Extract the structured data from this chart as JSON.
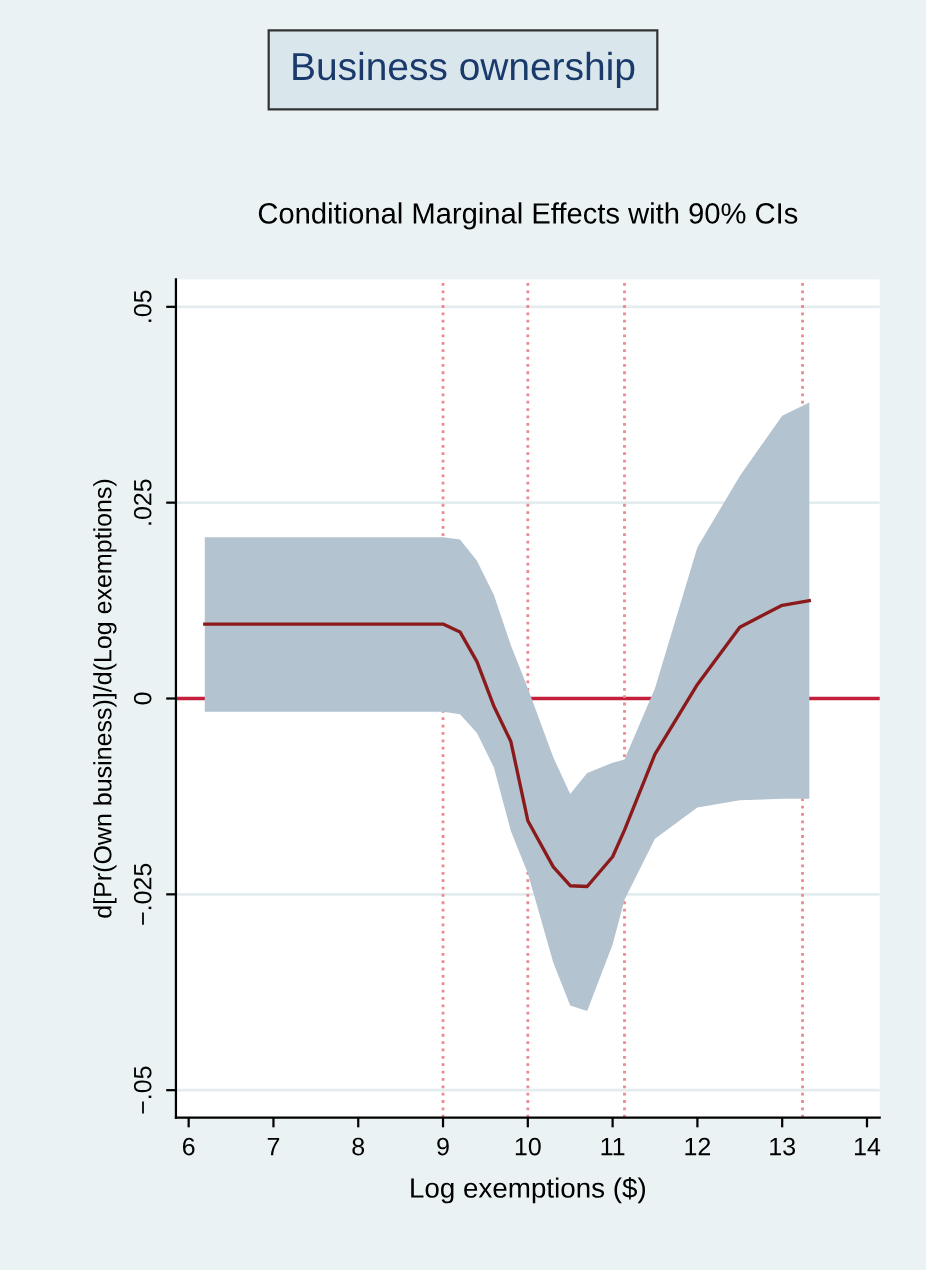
{
  "chart_data": {
    "type": "line",
    "title": "Business ownership",
    "subtitle": "Conditional Marginal Effects with 90% CIs",
    "xlabel": "Log exemptions ($)",
    "ylabel": "d[Pr(Own business)]/d(Log exemptions)",
    "x": [
      6.19,
      9.0,
      9.2,
      9.4,
      9.6,
      9.8,
      10.0,
      10.3,
      10.5,
      10.7,
      11.0,
      11.14,
      11.5,
      12.0,
      12.5,
      13.0,
      13.32
    ],
    "series": [
      {
        "color": "#8b1a1a",
        "values": [
          0.0095,
          0.0095,
          0.0085,
          0.0047,
          -0.001,
          -0.0055,
          -0.0156,
          -0.0215,
          -0.0239,
          -0.024,
          -0.0202,
          -0.0168,
          -0.0071,
          0.0018,
          0.0091,
          0.0119,
          0.0125
        ],
        "lower": [
          -0.0017,
          -0.0017,
          -0.002,
          -0.0044,
          -0.0088,
          -0.0169,
          -0.0223,
          -0.0337,
          -0.0392,
          -0.0399,
          -0.0314,
          -0.0257,
          -0.0179,
          -0.0139,
          -0.013,
          -0.0128,
          -0.0128
        ],
        "upper": [
          0.0206,
          0.0206,
          0.0203,
          0.0176,
          0.0132,
          0.0068,
          0.0013,
          -0.0075,
          -0.0122,
          -0.0095,
          -0.0082,
          -0.0078,
          0.0013,
          0.0193,
          0.0284,
          0.0361,
          0.0378
        ]
      }
    ],
    "xlim": [
      5.85,
      14.15
    ],
    "xticks": [
      6,
      7,
      8,
      9,
      10,
      11,
      12,
      13,
      14
    ],
    "ylim": [
      -0.0535,
      0.0535
    ],
    "yticks": [
      {
        "value": -0.05,
        "label": "−.05"
      },
      {
        "value": -0.025,
        "label": "−.025"
      },
      {
        "value": 0,
        "label": "0"
      },
      {
        "value": 0.025,
        "label": ".025"
      },
      {
        "value": 0.05,
        "label": ".05"
      }
    ],
    "grid": "y",
    "ref_lines": [
      {
        "axis": "y",
        "value": 0,
        "color": "#c4203c",
        "line_style": "solid"
      },
      {
        "axis": "x",
        "value": 9.0,
        "color": "#ec8890",
        "line_style": "dotted"
      },
      {
        "axis": "x",
        "value": 10.0,
        "color": "#ec8890",
        "line_style": "dotted"
      },
      {
        "axis": "x",
        "value": 11.14,
        "color": "#ec8890",
        "line_style": "dotted"
      },
      {
        "axis": "x",
        "value": 13.24,
        "color": "#ec8890",
        "line_style": "dotted"
      }
    ]
  }
}
